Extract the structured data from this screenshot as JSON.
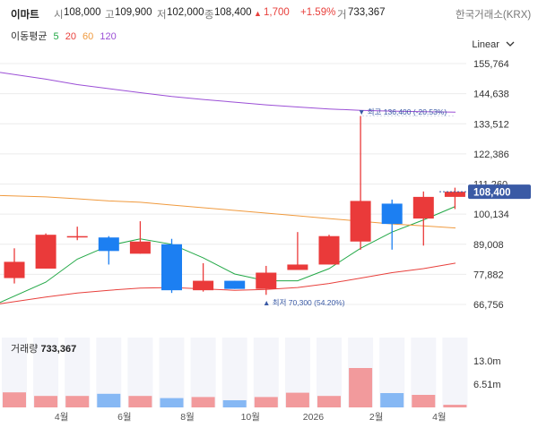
{
  "header": {
    "name": "이마트",
    "open_label": "시",
    "open": "108,000",
    "high_label": "고",
    "high": "109,900",
    "low_label": "저",
    "low": "102,000",
    "close_label": "종",
    "close": "108,400",
    "change_arrow": "▲",
    "change": "1,700",
    "change_pct": "+1.59%",
    "volume_label": "거",
    "volume": "733,367",
    "exchange": "한국거래소(KRX)"
  },
  "ma": {
    "title": "이동평균",
    "items": [
      {
        "label": "5",
        "color": "#22a846"
      },
      {
        "label": "20",
        "color": "#e8403c"
      },
      {
        "label": "60",
        "color": "#f09a3e"
      },
      {
        "label": "120",
        "color": "#9b4fd6"
      }
    ]
  },
  "scale_menu": {
    "label": "Linear"
  },
  "current_price_tag": "108,400",
  "max_annotation": {
    "text": "▼ 최고  136,400 (-20.53%)"
  },
  "min_annotation": {
    "text": "▲ 최저  70,300 (54.20%)"
  },
  "volume_panel": {
    "label": "거래량",
    "value": "733,367"
  },
  "colors": {
    "up": "#ea3a3a",
    "down": "#1c7ff2",
    "up_vol": "#f29a9c",
    "down_vol": "#86b8f4",
    "tag": "#3a5aa5"
  },
  "chart_data": {
    "type": "candlestick",
    "y_ticks": [
      "155,764",
      "144,638",
      "133,512",
      "122,386",
      "111,260",
      "100,134",
      "89,008",
      "77,882",
      "66,756"
    ],
    "y_tick_values": [
      155764,
      144638,
      133512,
      122386,
      111260,
      100134,
      89008,
      77882,
      66756
    ],
    "x_ticks": [
      "4월",
      "6월",
      "8월",
      "10월",
      "2026",
      "2월",
      "4월"
    ],
    "x_tick_slots": [
      1.5,
      3.5,
      5.5,
      7.5,
      9.5,
      11.5,
      13.5
    ],
    "candles": [
      {
        "open": 76500,
        "high": 87500,
        "low": 74500,
        "close": 82500
      },
      {
        "open": 80000,
        "high": 93000,
        "low": 80000,
        "close": 92500
      },
      {
        "open": 91500,
        "high": 95500,
        "low": 90500,
        "close": 92000
      },
      {
        "open": 91500,
        "high": 92000,
        "low": 81500,
        "close": 86500
      },
      {
        "open": 85500,
        "high": 97500,
        "low": 85500,
        "close": 90000
      },
      {
        "open": 89000,
        "high": 91000,
        "low": 71000,
        "close": 72000
      },
      {
        "open": 72000,
        "high": 82000,
        "low": 71500,
        "close": 75500
      },
      {
        "open": 75500,
        "high": 75500,
        "low": 72500,
        "close": 72500
      },
      {
        "open": 72500,
        "high": 81000,
        "low": 70300,
        "close": 78500
      },
      {
        "open": 79500,
        "high": 93500,
        "low": 79500,
        "close": 81500
      },
      {
        "open": 81500,
        "high": 92500,
        "low": 81500,
        "close": 92000
      },
      {
        "open": 90000,
        "high": 136400,
        "low": 87000,
        "close": 105000
      },
      {
        "open": 104000,
        "high": 105500,
        "low": 87000,
        "close": 96500
      },
      {
        "open": 98500,
        "high": 108500,
        "low": 88500,
        "close": 106500
      },
      {
        "open": 106500,
        "high": 109900,
        "low": 102000,
        "close": 108400
      }
    ],
    "volume": [
      4.2,
      3.2,
      3.2,
      3.8,
      3.2,
      2.6,
      2.9,
      2.0,
      2.9,
      4.1,
      3.2,
      11.0,
      4.0,
      3.5,
      0.73
    ],
    "volume_ticks": [
      "13.0m",
      "6.51m"
    ],
    "volume_tick_values": [
      13.0,
      6.51
    ],
    "series": [
      {
        "name": "5",
        "values": [
          67500,
          75000,
          83500,
          88500,
          91000,
          89000,
          84000,
          78000,
          75500,
          75500,
          80000,
          87500,
          93500,
          98000,
          103000
        ]
      },
      {
        "name": "20",
        "values": [
          67000,
          69500,
          71000,
          72000,
          72800,
          73000,
          72500,
          72000,
          72300,
          73000,
          74500,
          76500,
          78500,
          80000,
          82000
        ]
      },
      {
        "name": "60",
        "values": [
          107000,
          106500,
          105800,
          105000,
          104500,
          103500,
          102500,
          101500,
          100500,
          99500,
          98500,
          97500,
          96500,
          95800,
          95000
        ]
      },
      {
        "name": "120",
        "values": [
          152500,
          150000,
          148000,
          146500,
          145000,
          143600,
          142500,
          141500,
          140500,
          139700,
          139000,
          138500,
          138200,
          138000,
          137800
        ]
      }
    ]
  }
}
